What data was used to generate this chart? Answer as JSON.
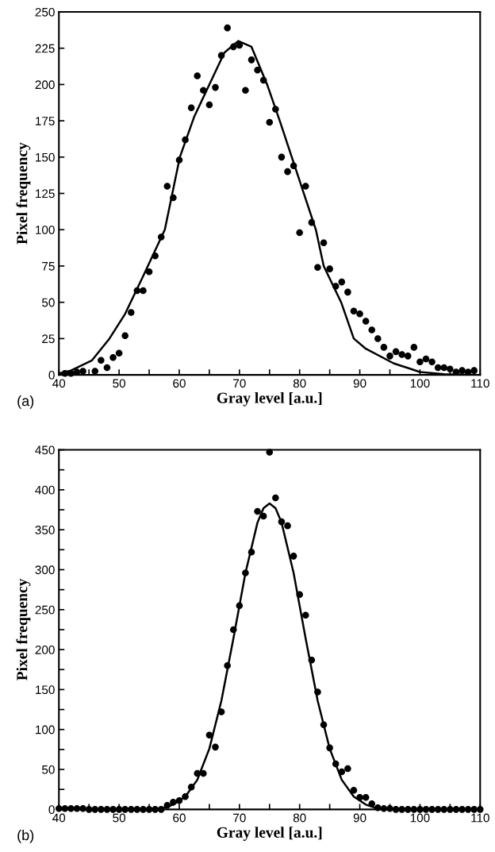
{
  "chart_data": [
    {
      "type": "scatter",
      "xlabel": "Gray level [a.u.]",
      "ylabel": "Pixel frequency",
      "annotations": [
        "(a)"
      ],
      "xlim": [
        40,
        110
      ],
      "ylim": [
        0,
        250
      ],
      "xticks": [
        40,
        {
          "value": 45,
          "label": null
        },
        50,
        {
          "value": 55,
          "label": null
        },
        60,
        {
          "value": 65,
          "label": null
        },
        70,
        {
          "value": 75,
          "label": null
        },
        80,
        {
          "value": 85,
          "label": null
        },
        90,
        {
          "value": 95,
          "label": null
        },
        100,
        {
          "value": 105,
          "label": null
        },
        110
      ],
      "yticks": [
        0,
        25,
        50,
        75,
        100,
        125,
        150,
        175,
        200,
        225,
        250
      ],
      "series": [
        {
          "marker": "circle",
          "color": "#000000",
          "x": [
            41,
            42,
            43,
            44,
            46,
            47,
            48,
            49,
            50,
            51,
            52,
            53,
            54,
            55,
            56,
            57,
            58,
            59,
            60,
            61,
            62,
            63,
            64,
            65,
            66,
            67,
            68,
            69,
            70,
            71,
            72,
            73,
            74,
            75,
            76,
            77,
            78,
            79,
            80,
            81,
            82,
            83,
            84,
            85,
            86,
            87,
            88,
            89,
            90,
            91,
            92,
            93,
            94,
            95,
            96,
            97,
            98,
            99,
            100,
            101,
            102,
            103,
            104,
            105,
            106,
            107,
            108,
            109
          ],
          "values": [
            1,
            1,
            2,
            2.5,
            2.5,
            10,
            5,
            12,
            15,
            27,
            43,
            58,
            58,
            71,
            82,
            95,
            130,
            122,
            148,
            162,
            184,
            206,
            196,
            186,
            198,
            220,
            239,
            226,
            227,
            196,
            217,
            210,
            203,
            174,
            183,
            150,
            140,
            144,
            98,
            130,
            105,
            74,
            91,
            73,
            61,
            64,
            57,
            44,
            42,
            37,
            31,
            25,
            19,
            13,
            16,
            14,
            13,
            19,
            9,
            11,
            9,
            5,
            5,
            4,
            2,
            3,
            2,
            3
          ]
        },
        {
          "type": "line",
          "marker": "none",
          "color": "#000000",
          "x": [
            40,
            42,
            45.5,
            48.4,
            51,
            54,
            57.6,
            60.1,
            62.5,
            65,
            67.5,
            69.8,
            72,
            74.6,
            76.7,
            78.7,
            82.7,
            84,
            86.9,
            89,
            91,
            95.6,
            100,
            104,
            110
          ],
          "values": [
            1,
            3,
            10,
            25,
            42,
            68,
            100,
            150,
            178,
            200,
            222,
            230,
            226,
            200,
            175,
            150,
            100,
            75,
            50,
            25,
            18,
            8,
            2,
            0.5,
            0
          ]
        }
      ]
    },
    {
      "type": "scatter",
      "xlabel": "Gray level [a.u.]",
      "ylabel": "Pixel frequency",
      "annotations": [
        "(b)"
      ],
      "xlim": [
        40,
        110
      ],
      "ylim": [
        0,
        450
      ],
      "xticks": [
        40,
        {
          "value": 45,
          "label": null
        },
        50,
        {
          "value": 55,
          "label": null
        },
        60,
        {
          "value": 65,
          "label": null
        },
        70,
        {
          "value": 75,
          "label": null
        },
        80,
        {
          "value": 85,
          "label": null
        },
        90,
        {
          "value": 95,
          "label": null
        },
        100,
        {
          "value": 105,
          "label": null
        },
        110
      ],
      "yticks": [
        0,
        {
          "value": 25,
          "label": null
        },
        50,
        {
          "value": 75,
          "label": null
        },
        100,
        {
          "value": 125,
          "label": null
        },
        150,
        {
          "value": 175,
          "label": null
        },
        200,
        {
          "value": 225,
          "label": null
        },
        250,
        {
          "value": 275,
          "label": null
        },
        300,
        {
          "value": 325,
          "label": null
        },
        350,
        {
          "value": 375,
          "label": null
        },
        400,
        {
          "value": 425,
          "label": null
        },
        450
      ],
      "series": [
        {
          "marker": "circle",
          "color": "#000000",
          "x": [
            40,
            41,
            42,
            43,
            44,
            45,
            46,
            47,
            48,
            49,
            50,
            51,
            52,
            53,
            54,
            55,
            56,
            57,
            58,
            59,
            60,
            61,
            62,
            63,
            64,
            65,
            66,
            67,
            68,
            69,
            70,
            71,
            72,
            73,
            74,
            75,
            76,
            77,
            78,
            79,
            80,
            81,
            82,
            83,
            84,
            85,
            86,
            87,
            88,
            89,
            90,
            91,
            92,
            93,
            94,
            95,
            96,
            97,
            98,
            99,
            100,
            101,
            102,
            103,
            104,
            105,
            106,
            107,
            108,
            109,
            110
          ],
          "values": [
            1,
            1,
            1,
            1,
            1,
            0,
            0,
            0,
            0,
            0,
            0,
            0,
            0,
            0,
            0,
            0,
            0,
            0,
            5,
            9,
            11,
            16,
            28,
            45,
            45,
            93,
            78,
            122,
            180,
            225,
            255,
            296,
            322,
            373,
            367,
            447,
            390,
            360,
            355,
            317,
            269,
            243,
            187,
            147,
            106,
            77,
            57,
            47,
            51,
            24,
            15,
            15,
            7,
            2,
            1,
            1,
            0,
            0,
            0,
            0,
            0,
            0,
            0,
            0,
            0,
            0,
            0,
            0,
            0,
            0,
            0
          ]
        },
        {
          "type": "line",
          "marker": "none",
          "color": "#000000",
          "x": [
            40,
            55,
            57,
            59,
            61,
            63,
            65,
            67,
            69,
            71,
            73,
            74,
            75,
            76,
            77,
            79,
            81,
            83,
            85,
            87,
            89,
            91,
            93,
            95,
            110
          ],
          "values": [
            0,
            0,
            1,
            6,
            16,
            37,
            76,
            136,
            214,
            296,
            359,
            377,
            383,
            377,
            359,
            296,
            214,
            136,
            76,
            37,
            16,
            6,
            1,
            0,
            0
          ]
        }
      ]
    }
  ]
}
